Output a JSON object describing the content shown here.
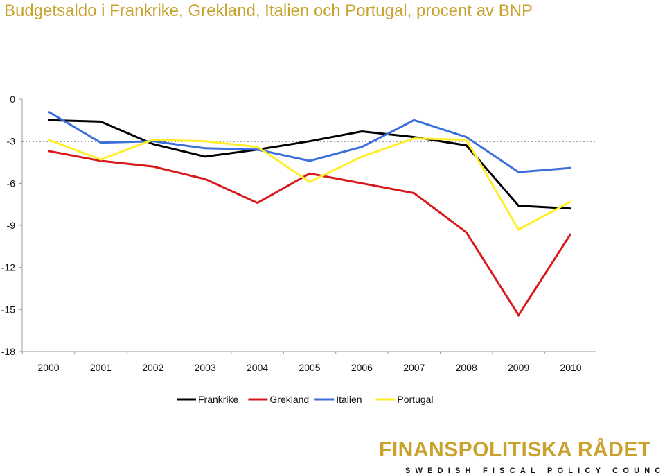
{
  "title": "Budgetsaldo i Frankrike, Grekland, Italien och Portugal, procent av BNP",
  "logo": {
    "name": "FINANSPOLITISKA RÅDET",
    "subtitle": "SWEDISH FISCAL POLICY COUNCIL"
  },
  "colors": {
    "title": "#c8a22c",
    "Frankrike": "#000000",
    "Grekland": "#d7191c",
    "Italien": "#3b6fd9",
    "Portugal": "#ffef2a",
    "reference_line": "#000000"
  },
  "chart_data": {
    "type": "line",
    "title": "Budgetsaldo i Frankrike, Grekland, Italien och Portugal, procent av BNP",
    "xlabel": "",
    "ylabel": "",
    "x": [
      "2000",
      "2001",
      "2002",
      "2003",
      "2004",
      "2005",
      "2006",
      "2007",
      "2008",
      "2009",
      "2010"
    ],
    "ylim": [
      -18,
      0
    ],
    "yticks": [
      0,
      -3,
      -6,
      -9,
      -12,
      -15,
      -18
    ],
    "reference_line": {
      "y": -3,
      "style": "dotted"
    },
    "grid": false,
    "legend": "bottom",
    "series": [
      {
        "name": "Frankrike",
        "values": [
          -1.5,
          -1.6,
          -3.2,
          -4.1,
          -3.6,
          -3.0,
          -2.3,
          -2.7,
          -3.3,
          -7.6,
          -7.8
        ]
      },
      {
        "name": "Grekland",
        "values": [
          -3.7,
          -4.4,
          -4.8,
          -5.7,
          -7.4,
          -5.3,
          -6.0,
          -6.7,
          -9.5,
          -15.4,
          -9.6
        ]
      },
      {
        "name": "Italien",
        "values": [
          -0.9,
          -3.1,
          -3.0,
          -3.5,
          -3.6,
          -4.4,
          -3.4,
          -1.5,
          -2.7,
          -5.2,
          -4.9
        ]
      },
      {
        "name": "Portugal",
        "values": [
          -2.9,
          -4.3,
          -2.9,
          -3.0,
          -3.4,
          -5.9,
          -4.1,
          -2.8,
          -2.9,
          -9.3,
          -7.3
        ]
      }
    ]
  }
}
